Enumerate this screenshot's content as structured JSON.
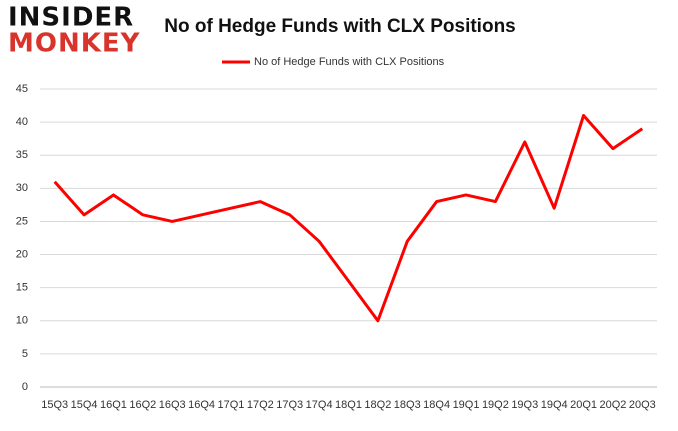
{
  "logo": {
    "line1": "INSIDER",
    "line2": "MONKEY"
  },
  "chart_data": {
    "type": "line",
    "title": "No of Hedge Funds with CLX Positions",
    "categories": [
      "15Q3",
      "15Q4",
      "16Q1",
      "16Q2",
      "16Q3",
      "16Q4",
      "17Q1",
      "17Q2",
      "17Q3",
      "17Q4",
      "18Q1",
      "18Q2",
      "18Q3",
      "18Q4",
      "19Q1",
      "19Q2",
      "19Q3",
      "19Q4",
      "20Q1",
      "20Q2",
      "20Q3"
    ],
    "series": [
      {
        "name": "No of Hedge Funds with CLX Positions",
        "color": "#ff0000",
        "values": [
          31,
          26,
          29,
          26,
          25,
          26,
          27,
          28,
          26,
          22,
          16,
          10,
          22,
          28,
          29,
          28,
          37,
          27,
          41,
          36,
          39
        ]
      }
    ],
    "ylim": [
      0,
      45
    ],
    "yticks": [
      0,
      5,
      10,
      15,
      20,
      25,
      30,
      35,
      40,
      45
    ],
    "grid": true,
    "legend": "top"
  }
}
